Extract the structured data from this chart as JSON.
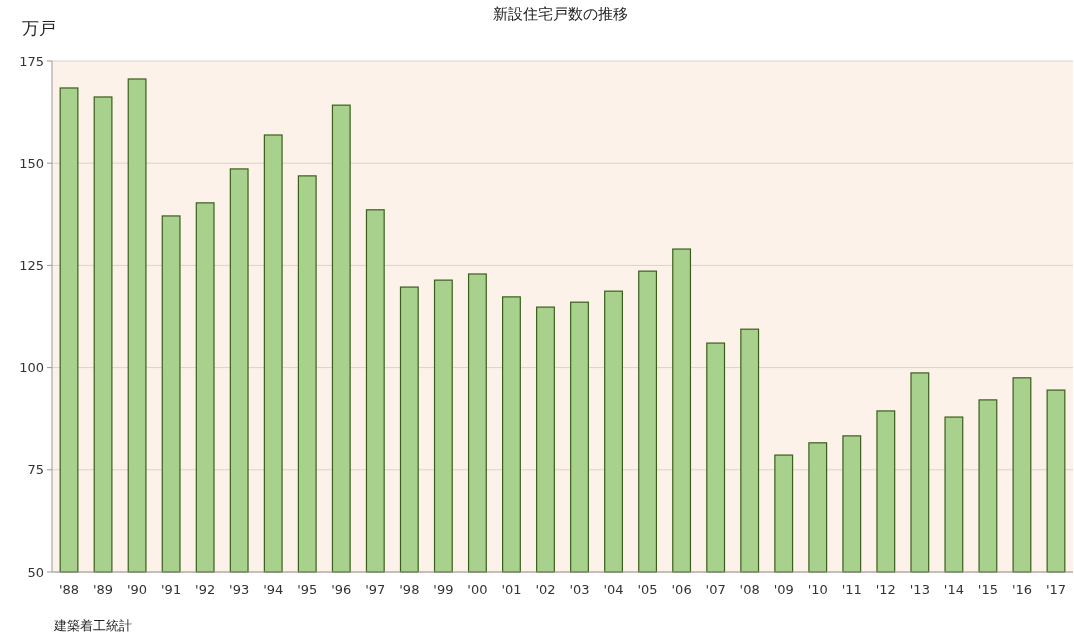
{
  "chart_data": {
    "type": "bar",
    "title": "新設住宅戸数の推移",
    "ylabel": "万戸",
    "annotations": [
      "建築着工統計"
    ],
    "categories": [
      "'88",
      "'89",
      "'90",
      "'91",
      "'92",
      "'93",
      "'94",
      "'95",
      "'96",
      "'97",
      "'98",
      "'99",
      "'00",
      "'01",
      "'02",
      "'03",
      "'04",
      "'05",
      "'06",
      "'07",
      "'08",
      "'09",
      "'10",
      "'11",
      "'12",
      "'13",
      "'14",
      "'15",
      "'16",
      "'17"
    ],
    "values": [
      168.4,
      166.2,
      170.6,
      137.1,
      140.3,
      148.6,
      156.9,
      146.9,
      164.2,
      138.6,
      119.7,
      121.4,
      122.9,
      117.3,
      114.8,
      116.0,
      118.7,
      123.6,
      129.0,
      106.0,
      109.4,
      78.6,
      81.6,
      83.3,
      89.4,
      98.7,
      87.9,
      92.1,
      97.5,
      94.5
    ],
    "color": "#a9d18e",
    "ylim": [
      50,
      175
    ],
    "yticks": [
      50,
      75,
      100,
      125,
      150,
      175
    ],
    "grid": "y"
  }
}
